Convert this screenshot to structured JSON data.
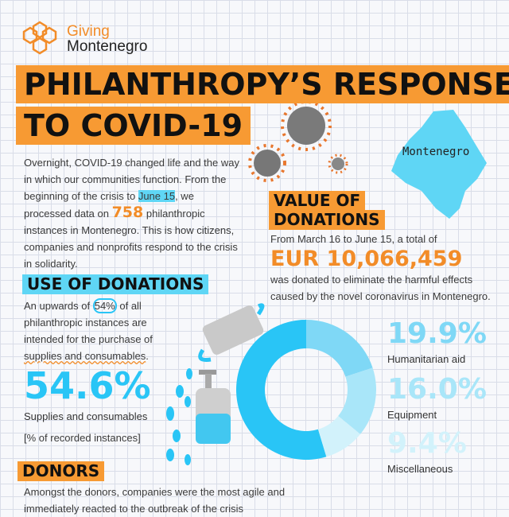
{
  "logo": {
    "line1": "Giving",
    "line2": "Montenegro"
  },
  "title": {
    "line1": "PHILANTHROPY’S RESPONSE",
    "line2": "TO COVID-19"
  },
  "intro": [
    "Overnight, COVID-19 changed life and the way in which our communities function. From the beginning of the crisis to ",
    "June 15",
    ", we processed data on ",
    "758",
    " philanthropic instances in Montenegro. This is how citizens, companies and nonprofits respond to the crisis in solidarity."
  ],
  "map_label": "Montenegro",
  "value_section": {
    "heading": [
      "VALUE OF",
      "DONATIONS"
    ],
    "lead": "From March 16 to June 15, a total of",
    "amount": "EUR 10,066,459",
    "text": "was donated to eliminate the harmful effects caused by the novel coronavirus in Montenegro."
  },
  "use_section": {
    "heading": "USE OF DONATIONS",
    "text": [
      "An upwards of ",
      "54%",
      " of all philanthropic instances are intended for the purchase of ",
      "supplies and consumables",
      "."
    ]
  },
  "chart_data": {
    "type": "donut",
    "categories": [
      "Supplies and consumables",
      "Humanitarian aid",
      "Equipment",
      "Miscellaneous"
    ],
    "values": [
      54.6,
      19.9,
      16.0,
      9.4
    ],
    "value_labels": [
      "54.6%",
      "19.9%",
      "16.0%",
      "9.4%"
    ],
    "colors": [
      "#29c5f6",
      "#7fd8f6",
      "#a9e6f9",
      "#d2f2fb"
    ],
    "annotation": "[% of recorded instances]"
  },
  "donors_section": {
    "heading": "DONORS",
    "text": "Amongst the donors, companies were the most agile and immediately reacted to the outbreak of the crisis"
  }
}
